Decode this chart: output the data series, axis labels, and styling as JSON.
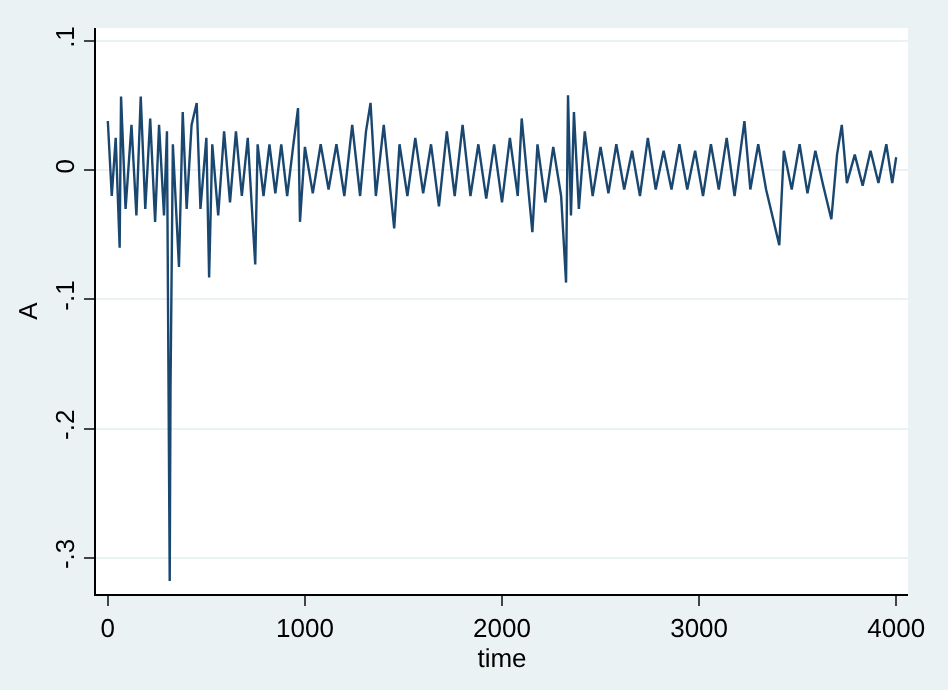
{
  "chart_data": {
    "type": "line",
    "xlabel": "time",
    "ylabel": "A",
    "x": [
      0,
      20,
      40,
      60,
      67,
      90,
      120,
      145,
      167,
      190,
      215,
      240,
      260,
      285,
      300,
      314,
      318,
      330,
      361,
      380,
      400,
      425,
      451,
      470,
      500,
      514,
      530,
      560,
      590,
      620,
      650,
      680,
      710,
      748,
      760,
      790,
      820,
      850,
      880,
      910,
      940,
      965,
      975,
      1000,
      1040,
      1080,
      1120,
      1160,
      1200,
      1240,
      1280,
      1310,
      1333,
      1360,
      1400,
      1453,
      1480,
      1520,
      1560,
      1600,
      1640,
      1680,
      1720,
      1760,
      1800,
      1840,
      1880,
      1920,
      1960,
      2000,
      2040,
      2080,
      2100,
      2154,
      2180,
      2220,
      2260,
      2300,
      2325,
      2335,
      2350,
      2365,
      2390,
      2420,
      2460,
      2500,
      2540,
      2580,
      2620,
      2660,
      2700,
      2740,
      2780,
      2820,
      2860,
      2900,
      2940,
      2980,
      3020,
      3060,
      3100,
      3140,
      3180,
      3230,
      3260,
      3300,
      3340,
      3407,
      3430,
      3470,
      3510,
      3550,
      3590,
      3630,
      3671,
      3700,
      3724,
      3750,
      3790,
      3830,
      3870,
      3910,
      3950,
      3980,
      4000
    ],
    "series": [
      {
        "color": "#1a476f",
        "values": [
          0.038,
          -0.02,
          0.025,
          -0.06,
          0.057,
          -0.03,
          0.035,
          -0.035,
          0.057,
          -0.03,
          0.04,
          -0.04,
          0.035,
          -0.035,
          0.03,
          -0.318,
          -0.17,
          0.02,
          -0.075,
          0.045,
          -0.03,
          0.035,
          0.052,
          -0.03,
          0.025,
          -0.083,
          0.02,
          -0.035,
          0.03,
          -0.025,
          0.03,
          -0.02,
          0.025,
          -0.073,
          0.02,
          -0.02,
          0.02,
          -0.018,
          0.02,
          -0.02,
          0.018,
          0.048,
          -0.04,
          0.018,
          -0.018,
          0.02,
          -0.015,
          0.02,
          -0.02,
          0.035,
          -0.02,
          0.03,
          0.052,
          -0.02,
          0.035,
          -0.045,
          0.02,
          -0.02,
          0.025,
          -0.018,
          0.02,
          -0.028,
          0.03,
          -0.02,
          0.035,
          -0.02,
          0.02,
          -0.022,
          0.02,
          -0.025,
          0.025,
          -0.02,
          0.04,
          -0.048,
          0.02,
          -0.025,
          0.018,
          -0.02,
          -0.087,
          0.058,
          -0.035,
          0.045,
          -0.03,
          0.03,
          -0.02,
          0.018,
          -0.018,
          0.02,
          -0.015,
          0.015,
          -0.02,
          0.025,
          -0.015,
          0.015,
          -0.015,
          0.02,
          -0.015,
          0.015,
          -0.02,
          0.02,
          -0.015,
          0.025,
          -0.02,
          0.038,
          -0.015,
          0.02,
          -0.015,
          -0.058,
          0.015,
          -0.015,
          0.02,
          -0.018,
          0.015,
          -0.012,
          -0.038,
          0.012,
          0.035,
          -0.01,
          0.012,
          -0.012,
          0.015,
          -0.01,
          0.02,
          -0.01,
          0.01
        ]
      }
    ],
    "xlim": [
      -60,
      4060
    ],
    "ylim": [
      -0.328,
      0.11
    ],
    "xticks": [
      0,
      1000,
      2000,
      3000,
      4000
    ],
    "yticks": [
      {
        "value": -0.3,
        "label": "-.3"
      },
      {
        "value": -0.2,
        "label": "-.2"
      },
      {
        "value": -0.1,
        "label": "-.1"
      },
      0,
      {
        "value": 0.1,
        "label": ".1"
      }
    ],
    "grid": "y",
    "marker": "none",
    "line_style": "solid"
  }
}
